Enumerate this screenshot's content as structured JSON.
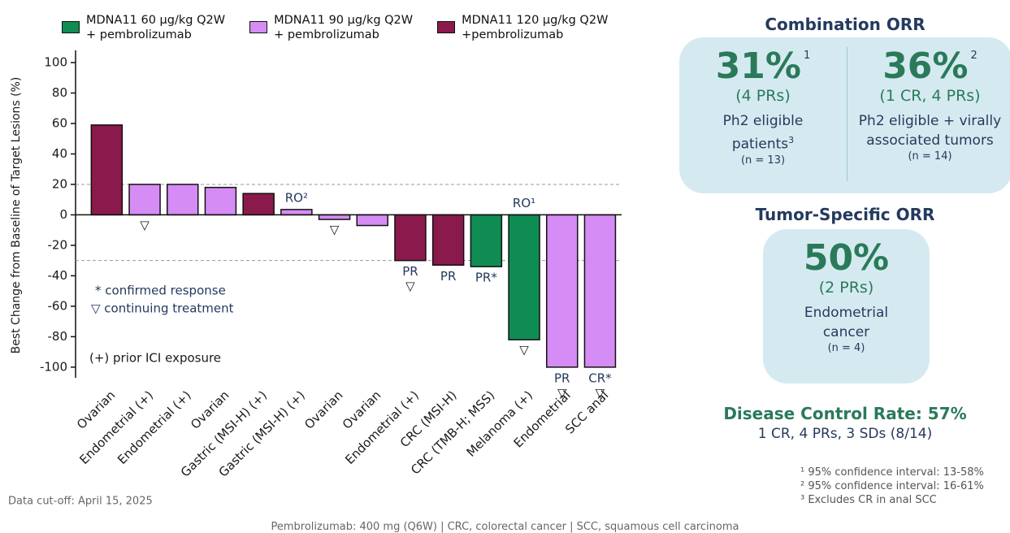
{
  "chart_data": {
    "type": "waterfall",
    "y_label": "Best Change from Baseline of Target Lesions (%)",
    "categories": [
      "Ovarian",
      "Endometrial (+)",
      "Endometrial (+)",
      "Ovarian",
      "Gastric (MSI-H) (+)",
      "Gastric (MSI-H) (+)",
      "Ovarian",
      "Ovarian",
      "Endometrial (+)",
      "CRC (MSI-H)",
      "CRC (TMB-H; MSS)",
      "Melanoma (+)",
      "Endometrial",
      "SCC anal"
    ],
    "series": [
      {
        "name": "MDNA11 60 µg/kg Q2W\n+ pembrolizumab",
        "color": "#0e8c52",
        "values": [
          null,
          null,
          null,
          null,
          null,
          null,
          null,
          null,
          null,
          null,
          -34,
          -82,
          null,
          null
        ]
      },
      {
        "name": "MDNA11 90 µg/kg Q2W\n+ pembrolizumab",
        "color": "#d68cf5",
        "values": [
          null,
          20,
          20,
          18,
          null,
          3.5,
          -3,
          -7,
          null,
          null,
          null,
          null,
          -100,
          -100
        ]
      },
      {
        "name": "MDNA11 120 µg/kg Q2W\n+pembrolizumab",
        "color": "#8a1a4b",
        "values": [
          59,
          null,
          null,
          null,
          14,
          null,
          null,
          null,
          -30,
          -33,
          null,
          null,
          null,
          null
        ]
      }
    ],
    "top_labels": [
      null,
      null,
      null,
      null,
      null,
      "RO²",
      null,
      null,
      null,
      null,
      null,
      "RO¹",
      null,
      null
    ],
    "response_labels": [
      null,
      null,
      null,
      null,
      null,
      null,
      null,
      null,
      "PR",
      "PR",
      "PR*",
      null,
      "PR",
      "CR*"
    ],
    "treatment_markers": [
      null,
      "▽",
      null,
      null,
      null,
      null,
      "▽",
      null,
      "▽",
      null,
      null,
      "▽",
      "▽",
      "▽"
    ],
    "reference_lines": [
      20,
      -30
    ],
    "ylim": [
      -107,
      108
    ],
    "yticks": [
      100,
      80,
      60,
      40,
      20,
      0,
      -20,
      -40,
      -60,
      -80,
      -100
    ],
    "notes": [
      "* confirmed response",
      "▽ continuing treatment",
      "(+) prior ICI exposure"
    ],
    "cutoff": "Data cut-off: April 15, 2025"
  },
  "panels": {
    "combination_title": "Combination ORR",
    "combination": [
      {
        "value": "31%",
        "sup": "1",
        "detail": "(4 PRs)",
        "desc": "Ph2 eligible\npatients",
        "desc_sup": "3",
        "n": "(n = 13)"
      },
      {
        "value": "36%",
        "sup": "2",
        "detail": "(1 CR, 4 PRs)",
        "desc": "Ph2 eligible + virally\nassociated tumors",
        "n": "(n = 14)"
      }
    ],
    "tumor_title": "Tumor-Specific ORR",
    "tumor": {
      "value": "50%",
      "detail": "(2 PRs)",
      "desc": "Endometrial\ncancer",
      "n": "(n = 4)"
    },
    "dcr_title": "Disease Control Rate: 57%",
    "dcr_detail": "1 CR, 4 PRs, 3 SDs (8/14)",
    "footnotes": [
      "¹ 95% confidence interval: 13-58%",
      "² 95% confidence interval: 16-61%",
      "³ Excludes CR in anal SCC"
    ]
  },
  "footer": "Pembrolizumab: 400 mg (Q6W) | CRC, colorectal cancer | SCC, squamous cell carcinoma"
}
